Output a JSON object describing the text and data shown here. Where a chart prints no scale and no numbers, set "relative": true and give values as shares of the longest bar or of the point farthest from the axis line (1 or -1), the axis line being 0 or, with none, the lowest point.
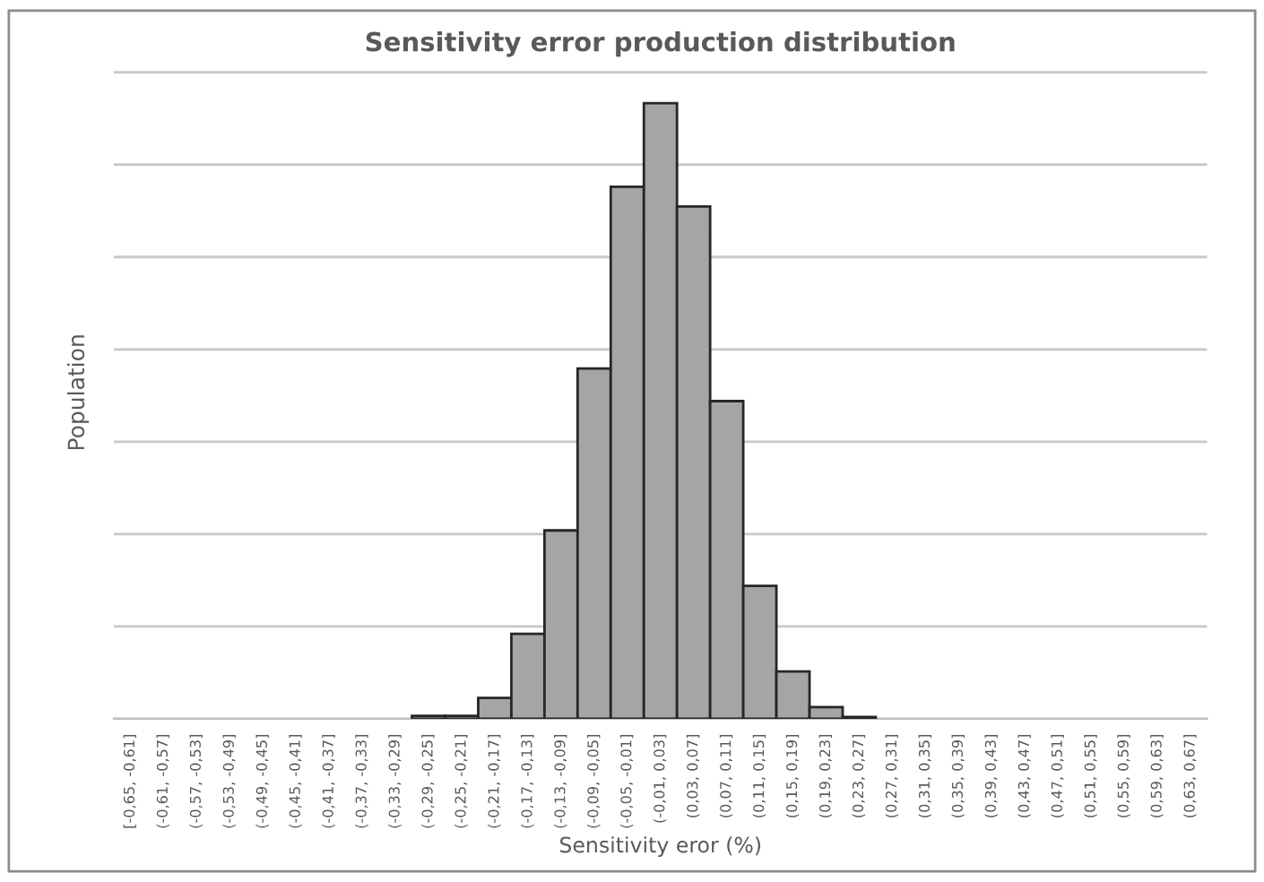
{
  "chart_data": {
    "type": "bar",
    "title": "Sensitivity error production distribution",
    "xlabel": "Sensitivity eror (%)",
    "ylabel": "Population",
    "relative": true,
    "grid": "y",
    "color": "#a5a5a5",
    "categories": [
      "[-0,65, -0,61]",
      "(-0,61, -0,57]",
      "(-0,57, -0,53]",
      "(-0,53, -0,49]",
      "(-0,49, -0,45]",
      "(-0,45, -0,41]",
      "(-0,41, -0,37]",
      "(-0,37, -0,33]",
      "(-0,33, -0,29]",
      "(-0,29, -0,25]",
      "(-0,25, -0,21]",
      "(-0,21, -0,17]",
      "(-0,17, -0,13]",
      "(-0,13, -0,09]",
      "(-0,09, -0,05]",
      "(-0,05, -0,01]",
      "(-0,01, 0,03]",
      "(0,03, 0,07]",
      "(0,07, 0,11]",
      "(0,11, 0,15]",
      "(0,15, 0,19]",
      "(0,19, 0,23]",
      "(0,23, 0,27]",
      "(0,27, 0,31]",
      "(0,31, 0,35]",
      "(0,35, 0,39]",
      "(0,39, 0,43]",
      "(0,43, 0,47]",
      "(0,47, 0,51]",
      "(0,51, 0,55]",
      "(0,55, 0,59]",
      "(0,59, 0,63]",
      "(0,63, 0,67]"
    ],
    "values": [
      0,
      0,
      0,
      0,
      0,
      0,
      0,
      0,
      0,
      0.005,
      0.005,
      0.034,
      0.138,
      0.306,
      0.569,
      0.864,
      1,
      0.832,
      0.516,
      0.216,
      0.077,
      0.019,
      0.003,
      0,
      0,
      0,
      0,
      0,
      0,
      0,
      0,
      0,
      0
    ]
  }
}
